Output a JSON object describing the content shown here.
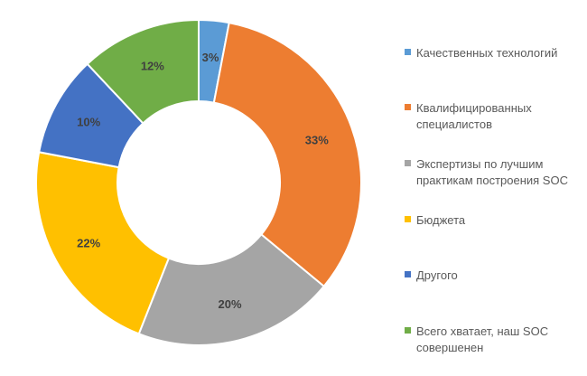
{
  "chart_data": {
    "type": "pie",
    "title": "",
    "donut": true,
    "legend_position": "right",
    "slices": [
      {
        "label": "Качественных технологий",
        "value": 3,
        "display": "3%",
        "color": "#5B9BD5"
      },
      {
        "label": "Квалифицированных специалистов",
        "value": 33,
        "display": "33%",
        "color": "#ED7D31"
      },
      {
        "label": "Экспертизы по лучшим практикам построения SOC",
        "value": 20,
        "display": "20%",
        "color": "#A5A5A5"
      },
      {
        "label": "Бюджета",
        "value": 22,
        "display": "22%",
        "color": "#FFC000"
      },
      {
        "label": "Другого",
        "value": 10,
        "display": "10%",
        "color": "#4472C4"
      },
      {
        "label": "Всего хватает, наш SOC совершенен",
        "value": 12,
        "display": "12%",
        "color": "#70AD47"
      }
    ]
  }
}
